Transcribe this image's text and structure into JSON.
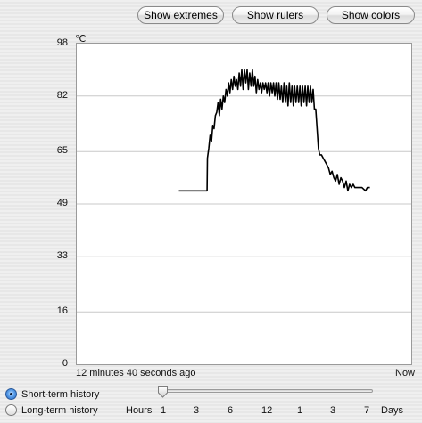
{
  "toolbar": {
    "show_extremes": "Show extremes",
    "show_rulers": "Show rulers",
    "show_colors": "Show colors"
  },
  "chart": {
    "unit": "℃",
    "x_start_label": "12 minutes 40 seconds ago",
    "x_end_label": "Now"
  },
  "chart_data": {
    "type": "line",
    "title": "",
    "xlabel": "",
    "ylabel": "℃",
    "ylim": [
      0,
      98
    ],
    "yticks": [
      "98",
      "82",
      "65",
      "49",
      "33",
      "16",
      "0"
    ],
    "grid": true,
    "line_color": "#000000",
    "x_unit": "seconds ago",
    "xlim": [
      760,
      0
    ],
    "series": [
      {
        "values": [
          [
            528,
            53
          ],
          [
            464,
            53
          ],
          [
            463,
            63
          ],
          [
            460,
            66
          ],
          [
            457,
            70
          ],
          [
            454,
            68
          ],
          [
            451,
            73
          ],
          [
            448,
            72
          ],
          [
            445,
            76
          ],
          [
            442,
            77
          ],
          [
            439,
            80
          ],
          [
            436,
            76
          ],
          [
            433,
            81
          ],
          [
            430,
            78
          ],
          [
            427,
            82
          ],
          [
            424,
            80
          ],
          [
            421,
            84
          ],
          [
            418,
            82
          ],
          [
            415,
            86
          ],
          [
            412,
            83
          ],
          [
            409,
            87
          ],
          [
            406,
            84
          ],
          [
            403,
            88
          ],
          [
            400,
            85
          ],
          [
            397,
            87
          ],
          [
            394,
            84
          ],
          [
            391,
            89
          ],
          [
            388,
            85
          ],
          [
            385,
            90
          ],
          [
            382,
            84
          ],
          [
            379,
            90
          ],
          [
            376,
            86
          ],
          [
            373,
            90
          ],
          [
            370,
            84
          ],
          [
            367,
            89
          ],
          [
            364,
            85
          ],
          [
            361,
            90
          ],
          [
            358,
            85
          ],
          [
            355,
            88
          ],
          [
            352,
            83
          ],
          [
            349,
            87
          ],
          [
            346,
            84
          ],
          [
            343,
            86
          ],
          [
            340,
            83
          ],
          [
            337,
            86
          ],
          [
            334,
            84
          ],
          [
            331,
            86
          ],
          [
            328,
            83
          ],
          [
            325,
            86
          ],
          [
            322,
            82
          ],
          [
            319,
            86
          ],
          [
            316,
            83
          ],
          [
            313,
            86
          ],
          [
            310,
            82
          ],
          [
            307,
            86
          ],
          [
            304,
            81
          ],
          [
            301,
            86
          ],
          [
            298,
            81
          ],
          [
            295,
            85
          ],
          [
            292,
            80
          ],
          [
            289,
            86
          ],
          [
            286,
            80
          ],
          [
            283,
            85
          ],
          [
            280,
            79
          ],
          [
            277,
            86
          ],
          [
            274,
            80
          ],
          [
            271,
            85
          ],
          [
            268,
            79
          ],
          [
            265,
            85
          ],
          [
            262,
            80
          ],
          [
            259,
            85
          ],
          [
            256,
            80
          ],
          [
            253,
            85
          ],
          [
            250,
            79
          ],
          [
            247,
            85
          ],
          [
            244,
            80
          ],
          [
            241,
            85
          ],
          [
            238,
            79
          ],
          [
            235,
            85
          ],
          [
            232,
            80
          ],
          [
            229,
            85
          ],
          [
            226,
            80
          ],
          [
            223,
            84
          ],
          [
            220,
            78
          ],
          [
            217,
            78
          ],
          [
            214,
            72
          ],
          [
            211,
            66
          ],
          [
            208,
            64
          ],
          [
            204,
            64
          ],
          [
            200,
            63
          ],
          [
            196,
            62
          ],
          [
            192,
            61
          ],
          [
            188,
            60
          ],
          [
            184,
            58
          ],
          [
            180,
            59
          ],
          [
            176,
            57
          ],
          [
            172,
            56
          ],
          [
            168,
            58
          ],
          [
            164,
            55
          ],
          [
            160,
            57
          ],
          [
            156,
            56
          ],
          [
            152,
            54
          ],
          [
            148,
            56
          ],
          [
            144,
            53
          ],
          [
            140,
            55
          ],
          [
            136,
            54
          ],
          [
            132,
            55
          ],
          [
            128,
            54
          ],
          [
            120,
            54
          ],
          [
            112,
            54
          ],
          [
            104,
            53
          ],
          [
            100,
            54
          ],
          [
            94,
            54
          ]
        ]
      }
    ]
  },
  "history": {
    "short_term": {
      "label": "Short-term history",
      "selected": true
    },
    "long_term": {
      "label": "Long-term history",
      "selected": false
    }
  },
  "scale": {
    "hours_label": "Hours",
    "days_label": "Days",
    "ticks": [
      "1",
      "3",
      "6",
      "12",
      "1",
      "3",
      "7"
    ],
    "value": 0
  }
}
